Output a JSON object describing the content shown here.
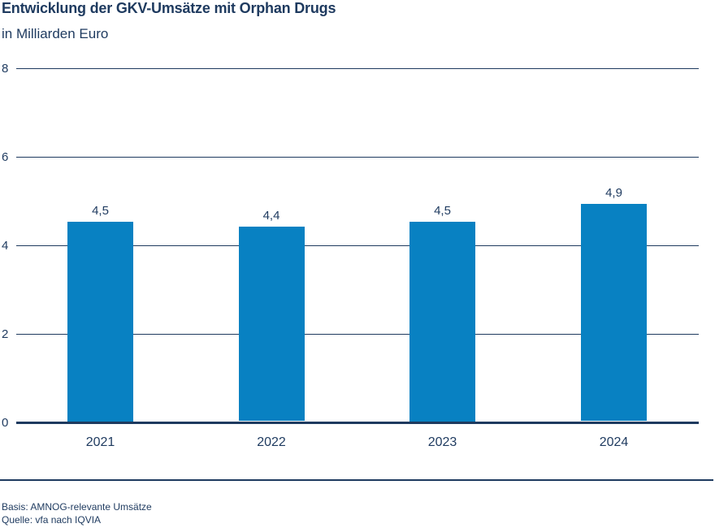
{
  "header": {
    "title": "Entwicklung der GKV-Umsätze mit Orphan Drugs",
    "subtitle": "in Milliarden Euro"
  },
  "chart_data": {
    "type": "bar",
    "title": "Entwicklung der GKV-Umsätze mit Orphan Drugs",
    "subtitle": "in Milliarden Euro",
    "unit": "Milliarden Euro",
    "categories": [
      "2021",
      "2022",
      "2023",
      "2024"
    ],
    "values": [
      4.5,
      4.4,
      4.5,
      4.9
    ],
    "value_labels": [
      "4,5",
      "4,4",
      "4,5",
      "4,9"
    ],
    "ylim": [
      0,
      8
    ],
    "yticks": [
      0,
      2,
      4,
      6,
      8
    ],
    "ytick_labels": [
      "0",
      "2",
      "4",
      "6",
      "8"
    ],
    "grid": true,
    "legend": "none",
    "bar_color": "#0881C2",
    "axis_color": "#1E3A5F"
  },
  "footer": {
    "basis": "Basis: AMNOG-relevante Umsätze",
    "quelle": "Quelle: vfa nach IQVIA"
  }
}
